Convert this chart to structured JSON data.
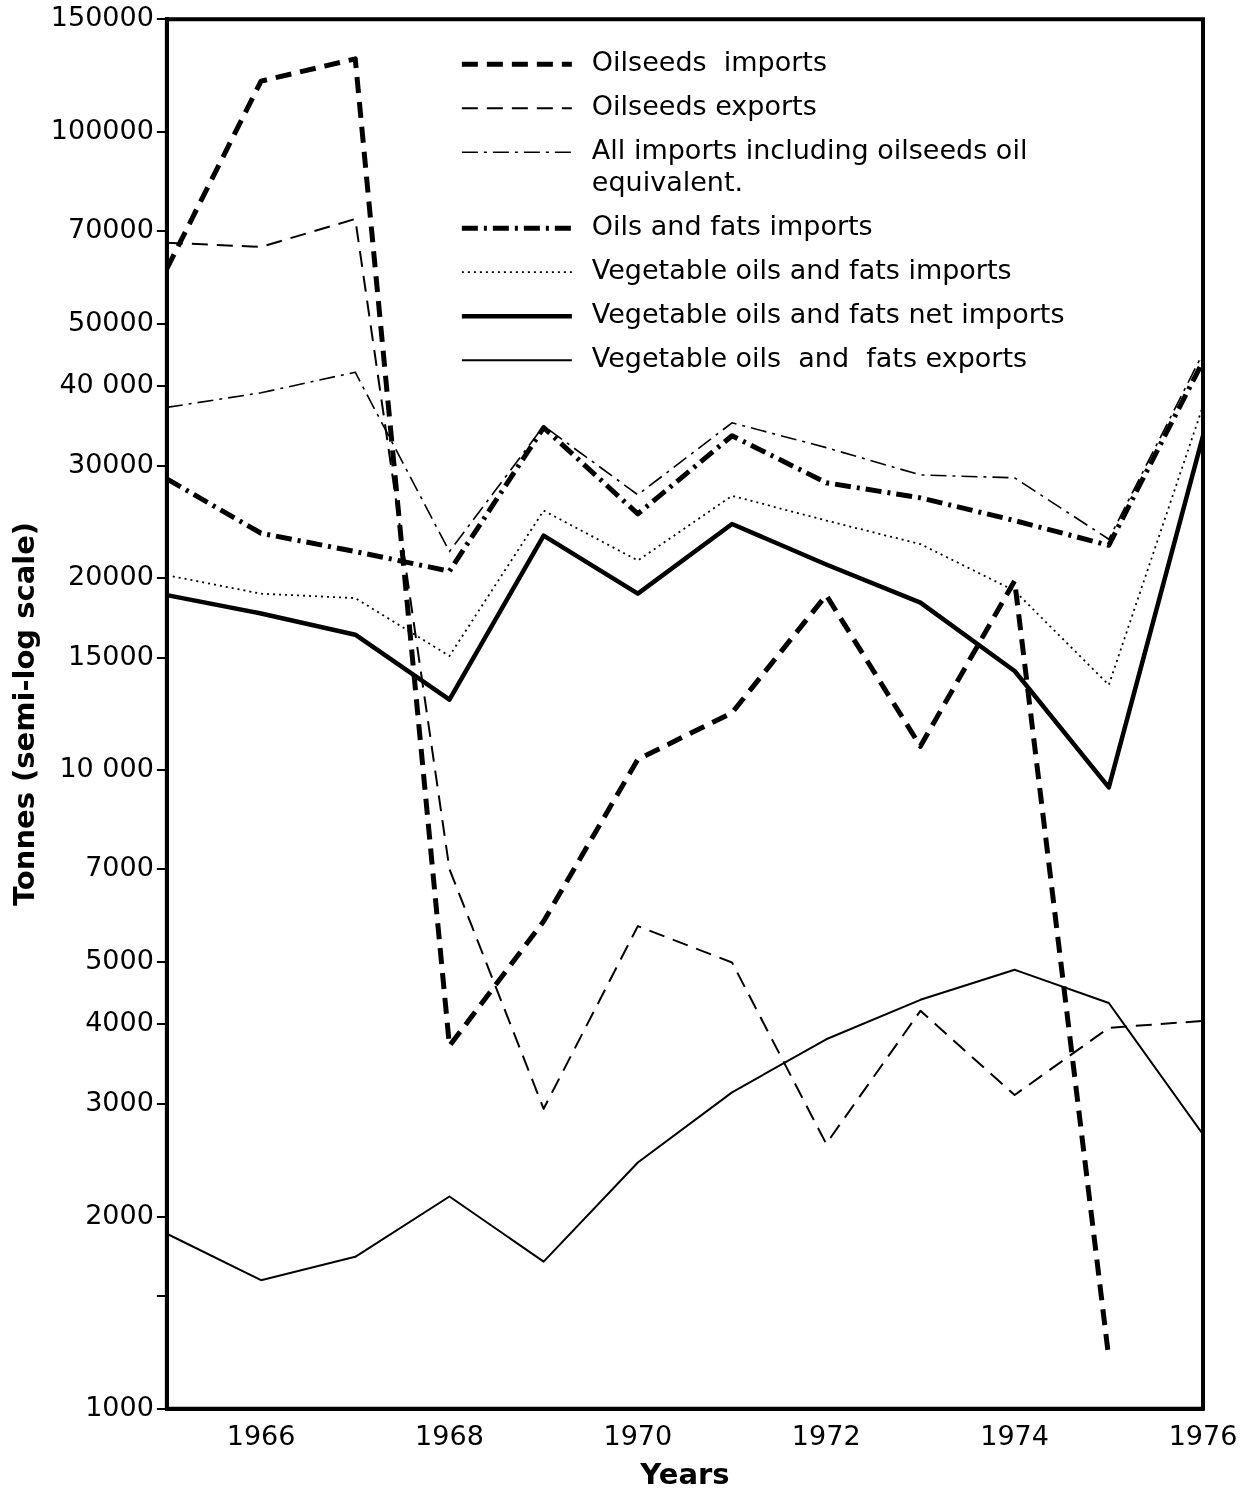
{
  "chart_data": {
    "type": "line",
    "xlabel": "Years",
    "ylabel": "Tonnes (semi-log scale)",
    "x": [
      1965,
      1966,
      1967,
      1968,
      1969,
      1970,
      1971,
      1972,
      1973,
      1974,
      1975,
      1976
    ],
    "xlim": [
      1965,
      1976
    ],
    "xticks": [
      1966,
      1968,
      1970,
      1972,
      1974,
      1976
    ],
    "ylim": [
      1000,
      150000
    ],
    "yticks": [
      1000,
      {
        "value": 1500,
        "label": null
      },
      2000,
      3000,
      4000,
      5000,
      7000,
      {
        "value": 10000,
        "label": "10 000"
      },
      15000,
      20000,
      30000,
      {
        "value": 40000,
        "label": "40 000"
      },
      50000,
      70000,
      100000,
      150000
    ],
    "log": "y",
    "grid": false,
    "legend": "top",
    "marker": "none",
    "series": [
      {
        "name": "Oilseeds  imports",
        "color": "#000000",
        "line_style": "dashed",
        "values": [
          61000,
          120000,
          130000,
          3700,
          5800,
          10400,
          12300,
          18800,
          10900,
          19800,
          1200,
          null
        ]
      },
      {
        "name": "Oilseeds exports",
        "color": "#000000",
        "line_style": "dashed",
        "values": [
          67000,
          66000,
          73000,
          7000,
          2950,
          5700,
          5000,
          2600,
          4200,
          3100,
          3950,
          4050
        ]
      },
      {
        "name": "All imports including oilseeds oil equivalent.",
        "color": "#000000",
        "line_style": "dashdot",
        "values": [
          37000,
          39000,
          42000,
          22000,
          34600,
          27000,
          35000,
          32000,
          29000,
          28700,
          23000,
          45000
        ]
      },
      {
        "name": "Oils and fats imports",
        "color": "#000000",
        "line_style": "dashdot",
        "values": [
          28600,
          23500,
          22000,
          20500,
          34400,
          25200,
          33400,
          28200,
          26700,
          24600,
          22500,
          43700
        ]
      },
      {
        "name": "Vegetable oils and fats imports",
        "color": "#000000",
        "line_style": "dotted",
        "values": [
          20200,
          18900,
          18600,
          15100,
          25500,
          21300,
          26900,
          24600,
          22600,
          19100,
          13600,
          37200
        ]
      },
      {
        "name": "Vegetable oils and fats net imports",
        "color": "#000000",
        "line_style": "solid",
        "values": [
          18800,
          17600,
          16300,
          12900,
          23300,
          18900,
          24300,
          21000,
          18300,
          14300,
          9400,
          33400
        ]
      },
      {
        "name": "Vegetable oils  and  fats exports",
        "color": "#000000",
        "line_style": "solid",
        "values": [
          1880,
          1590,
          1730,
          2150,
          1700,
          2430,
          3130,
          3790,
          4370,
          4870,
          4320,
          2690
        ]
      }
    ]
  }
}
